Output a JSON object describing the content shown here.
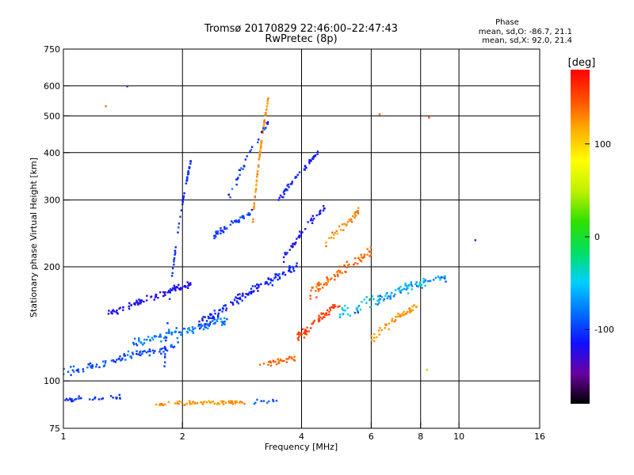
{
  "chart_data": {
    "type": "scatter",
    "title": "Tromsø 20170829 22:46:00–22:47:43",
    "subtitle": "RwPretec (8p)",
    "xlabel": "Frequency [MHz]",
    "ylabel": "Stationary phase Virtual Height [km]",
    "x_scale": "log",
    "y_scale": "log",
    "xlim": [
      1,
      16
    ],
    "ylim": [
      75,
      750
    ],
    "x_ticks": [
      1,
      2,
      4,
      6,
      8,
      10,
      16
    ],
    "x_tick_labels": [
      "1",
      "2",
      "4",
      "6",
      "8",
      "10",
      "16"
    ],
    "y_ticks": [
      75,
      100,
      200,
      300,
      400,
      500,
      600,
      750
    ],
    "y_tick_labels": [
      "75",
      "100",
      "200",
      "300",
      "400",
      "500",
      "600",
      "750"
    ],
    "grid": true,
    "grid_x": [
      2,
      4,
      6,
      8,
      10
    ],
    "grid_y": [
      100,
      200,
      300,
      400,
      500,
      600
    ],
    "phase_legend": {
      "title": "Phase",
      "line1": "mean, sd,O: -86.7, 21.1",
      "line2": "mean, sd,X:  92.0, 21.4"
    },
    "colorbar": {
      "label": "[deg]",
      "range": [
        -180,
        180
      ],
      "ticks": [
        100,
        0,
        -100
      ],
      "tick_labels": [
        "100",
        "0",
        "-100"
      ],
      "colormap": [
        "#000000",
        "#6a00a0",
        "#1010ff",
        "#0070ff",
        "#00d0ff",
        "#00e060",
        "#30e000",
        "#c0f000",
        "#ffff00",
        "#ffb000",
        "#ff5000",
        "#ff0000"
      ]
    },
    "clusters": [
      {
        "f0": 1.0,
        "f1": 1.4,
        "h0": 89,
        "h1": 91,
        "spread": 2,
        "n": 30,
        "phase": -105,
        "ps": 20
      },
      {
        "f0": 1.7,
        "f1": 2.9,
        "h0": 87,
        "h1": 88,
        "spread": 1.5,
        "n": 70,
        "phase": 125,
        "ps": 20
      },
      {
        "f0": 3.0,
        "f1": 3.5,
        "h0": 88,
        "h1": 89,
        "spread": 1.5,
        "n": 10,
        "phase": -90,
        "ps": 30
      },
      {
        "f0": 1.0,
        "f1": 2.0,
        "h0": 105,
        "h1": 125,
        "spread": 4,
        "n": 90,
        "phase": -95,
        "ps": 25
      },
      {
        "f0": 1.3,
        "f1": 2.1,
        "h0": 150,
        "h1": 180,
        "spread": 5,
        "n": 90,
        "phase": -120,
        "ps": 20
      },
      {
        "f0": 1.5,
        "f1": 2.6,
        "h0": 125,
        "h1": 145,
        "spread": 6,
        "n": 100,
        "phase": -80,
        "ps": 25
      },
      {
        "f0": 1.8,
        "f1": 2.1,
        "h0": 110,
        "h1": 380,
        "spread": 6,
        "n": 60,
        "phase": -105,
        "ps": 20
      },
      {
        "f0": 2.4,
        "f1": 3.0,
        "h0": 240,
        "h1": 280,
        "spread": 8,
        "n": 50,
        "phase": -100,
        "ps": 20
      },
      {
        "f0": 2.2,
        "f1": 3.9,
        "h0": 140,
        "h1": 200,
        "spread": 8,
        "n": 120,
        "phase": -110,
        "ps": 25
      },
      {
        "f0": 3.0,
        "f1": 3.3,
        "h0": 250,
        "h1": 560,
        "spread": 10,
        "n": 70,
        "phase": 125,
        "ps": 20
      },
      {
        "f0": 3.1,
        "f1": 3.9,
        "h0": 110,
        "h1": 115,
        "spread": 3,
        "n": 30,
        "phase": 140,
        "ps": 15
      },
      {
        "f0": 3.5,
        "f1": 4.4,
        "h0": 300,
        "h1": 400,
        "spread": 10,
        "n": 45,
        "phase": -110,
        "ps": 20
      },
      {
        "f0": 3.9,
        "f1": 5.0,
        "h0": 130,
        "h1": 160,
        "spread": 6,
        "n": 60,
        "phase": 155,
        "ps": 15
      },
      {
        "f0": 4.2,
        "f1": 6.0,
        "h0": 170,
        "h1": 220,
        "spread": 10,
        "n": 70,
        "phase": 140,
        "ps": 20
      },
      {
        "f0": 4.6,
        "f1": 5.6,
        "h0": 230,
        "h1": 280,
        "spread": 10,
        "n": 35,
        "phase": 130,
        "ps": 20
      },
      {
        "f0": 5.0,
        "f1": 9.3,
        "h0": 150,
        "h1": 190,
        "spread": 8,
        "n": 110,
        "phase": -60,
        "ps": 55
      },
      {
        "f0": 6.0,
        "f1": 8.0,
        "h0": 130,
        "h1": 160,
        "spread": 6,
        "n": 50,
        "phase": 125,
        "ps": 20
      },
      {
        "f0": 3.6,
        "f1": 4.6,
        "h0": 210,
        "h1": 290,
        "spread": 8,
        "n": 40,
        "phase": -120,
        "ps": 20
      },
      {
        "f0": 2.6,
        "f1": 3.3,
        "h0": 300,
        "h1": 480,
        "spread": 15,
        "n": 30,
        "phase": -100,
        "ps": 40
      }
    ],
    "isolated_points": [
      {
        "f": 1.28,
        "h": 530,
        "phase": 135
      },
      {
        "f": 1.45,
        "h": 598,
        "phase": -140
      },
      {
        "f": 11.0,
        "h": 235,
        "phase": -110
      },
      {
        "f": 8.4,
        "h": 495,
        "phase": 150
      },
      {
        "f": 6.3,
        "h": 505,
        "phase": 140
      },
      {
        "f": 8.3,
        "h": 107,
        "phase": 40
      }
    ]
  }
}
